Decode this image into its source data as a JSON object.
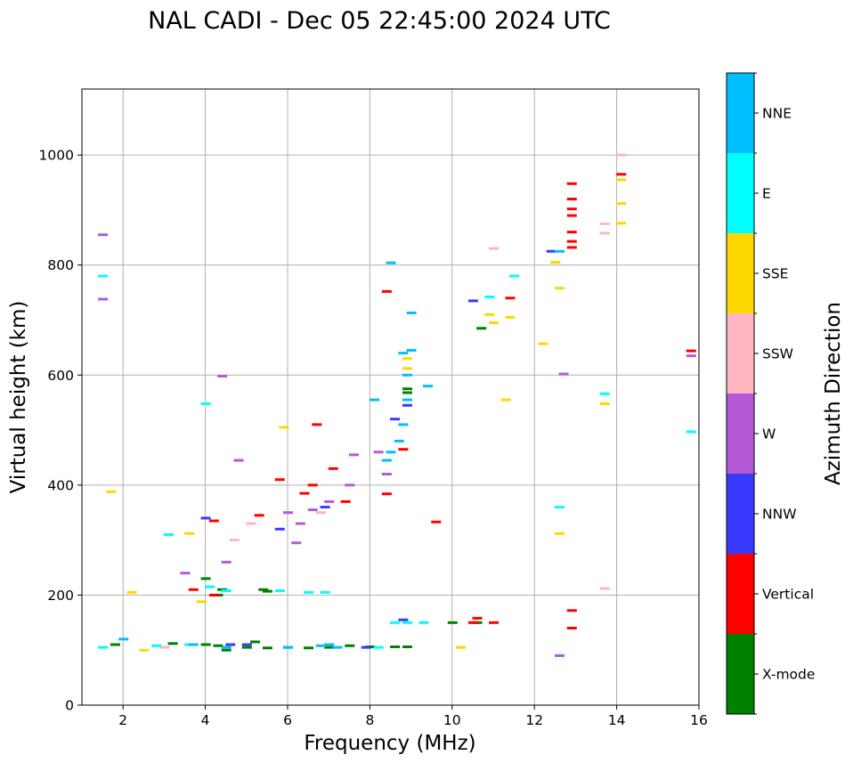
{
  "chart_data": {
    "type": "scatter",
    "title": "NAL CADI - Dec 05 22:45:00 2024 UTC",
    "xlabel": "Frequency (MHz)",
    "ylabel": "Virtual height (km)",
    "xlim": [
      1,
      16
    ],
    "ylim": [
      0,
      1120
    ],
    "xticks": [
      2,
      4,
      6,
      8,
      10,
      12,
      14,
      16
    ],
    "yticks": [
      0,
      200,
      400,
      600,
      800,
      1000
    ],
    "grid": true,
    "colorbar": {
      "label": "Azimuth Direction",
      "entries": [
        {
          "name": "X-mode",
          "color": "#008000"
        },
        {
          "name": "Vertical",
          "color": "#ff0000"
        },
        {
          "name": "NNW",
          "color": "#3a3aff"
        },
        {
          "name": "W",
          "color": "#b45ad6"
        },
        {
          "name": "SSW",
          "color": "#ffb6c1"
        },
        {
          "name": "SSE",
          "color": "#ffd700"
        },
        {
          "name": "E",
          "color": "#00ffff"
        },
        {
          "name": "NNE",
          "color": "#00bfff"
        }
      ]
    },
    "series": [
      {
        "name": "X-mode",
        "points": [
          [
            4.0,
            110
          ],
          [
            4.3,
            108
          ],
          [
            4.5,
            100
          ],
          [
            5.0,
            105
          ],
          [
            5.5,
            104
          ],
          [
            6.0,
            105
          ],
          [
            6.5,
            104
          ],
          [
            7.0,
            105
          ],
          [
            7.5,
            108
          ],
          [
            8.0,
            106
          ],
          [
            8.6,
            106
          ],
          [
            8.9,
            106
          ],
          [
            10.0,
            150
          ],
          [
            10.6,
            150
          ],
          [
            10.7,
            685
          ],
          [
            8.9,
            568
          ],
          [
            8.9,
            575
          ],
          [
            4.4,
            210
          ],
          [
            5.5,
            207
          ],
          [
            4.0,
            230
          ],
          [
            4.3,
            200
          ],
          [
            1.8,
            110
          ],
          [
            3.2,
            112
          ],
          [
            5.2,
            115
          ],
          [
            5.4,
            210
          ]
        ]
      },
      {
        "name": "Vertical",
        "points": [
          [
            10.5,
            150
          ],
          [
            11.0,
            150
          ],
          [
            10.6,
            158
          ],
          [
            12.9,
            172
          ],
          [
            12.9,
            140
          ],
          [
            8.4,
            752
          ],
          [
            8.4,
            384
          ],
          [
            9.6,
            333
          ],
          [
            12.9,
            948
          ],
          [
            12.9,
            920
          ],
          [
            12.9,
            902
          ],
          [
            12.9,
            890
          ],
          [
            12.9,
            860
          ],
          [
            12.9,
            843
          ],
          [
            12.9,
            832
          ],
          [
            14.1,
            965
          ],
          [
            15.8,
            644
          ],
          [
            11.4,
            740
          ],
          [
            5.3,
            345
          ],
          [
            6.4,
            385
          ],
          [
            6.6,
            400
          ],
          [
            7.1,
            430
          ],
          [
            5.8,
            410
          ],
          [
            4.2,
            200
          ],
          [
            3.7,
            210
          ],
          [
            4.2,
            335
          ],
          [
            6.7,
            510
          ],
          [
            7.4,
            370
          ],
          [
            8.8,
            465
          ]
        ]
      },
      {
        "name": "NNW",
        "points": [
          [
            12.4,
            825
          ],
          [
            10.5,
            735
          ],
          [
            4.6,
            110
          ],
          [
            5.0,
            110
          ],
          [
            7.9,
            105
          ],
          [
            8.6,
            520
          ],
          [
            8.9,
            545
          ],
          [
            4.0,
            340
          ],
          [
            5.8,
            320
          ],
          [
            6.9,
            360
          ],
          [
            8.8,
            155
          ]
        ]
      },
      {
        "name": "W",
        "points": [
          [
            1.5,
            855
          ],
          [
            1.5,
            738
          ],
          [
            4.4,
            598
          ],
          [
            12.7,
            602
          ],
          [
            12.6,
            90
          ],
          [
            15.8,
            635
          ],
          [
            6.3,
            330
          ],
          [
            7.0,
            370
          ],
          [
            7.5,
            400
          ],
          [
            8.4,
            420
          ],
          [
            4.5,
            260
          ],
          [
            6.2,
            295
          ],
          [
            4.8,
            445
          ],
          [
            6.0,
            350
          ],
          [
            6.6,
            355
          ],
          [
            7.6,
            455
          ],
          [
            8.2,
            460
          ],
          [
            3.5,
            240
          ]
        ]
      },
      {
        "name": "SSW",
        "points": [
          [
            14.1,
            1000
          ],
          [
            13.7,
            875
          ],
          [
            13.7,
            858
          ],
          [
            13.7,
            212
          ],
          [
            11.0,
            830
          ],
          [
            5.1,
            330
          ],
          [
            6.8,
            350
          ],
          [
            4.7,
            300
          ],
          [
            3.0,
            105
          ]
        ]
      },
      {
        "name": "SSE",
        "points": [
          [
            14.1,
            955
          ],
          [
            14.1,
            912
          ],
          [
            14.1,
            876
          ],
          [
            12.5,
            805
          ],
          [
            12.6,
            758
          ],
          [
            12.2,
            657
          ],
          [
            13.7,
            548
          ],
          [
            12.6,
            312
          ],
          [
            11.3,
            555
          ],
          [
            10.9,
            710
          ],
          [
            11.0,
            695
          ],
          [
            11.4,
            705
          ],
          [
            10.2,
            105
          ],
          [
            1.7,
            388
          ],
          [
            3.6,
            312
          ],
          [
            5.9,
            505
          ],
          [
            3.9,
            188
          ],
          [
            2.5,
            100
          ],
          [
            2.2,
            205
          ],
          [
            8.9,
            630
          ],
          [
            8.9,
            612
          ]
        ]
      },
      {
        "name": "E",
        "points": [
          [
            1.5,
            780
          ],
          [
            15.8,
            497
          ],
          [
            13.7,
            566
          ],
          [
            12.6,
            360
          ],
          [
            11.5,
            780
          ],
          [
            10.9,
            742
          ],
          [
            4.0,
            548
          ],
          [
            3.1,
            310
          ],
          [
            8.9,
            150
          ],
          [
            8.6,
            150
          ],
          [
            9.3,
            150
          ],
          [
            8.2,
            105
          ],
          [
            6.5,
            205
          ],
          [
            6.9,
            205
          ],
          [
            4.5,
            208
          ],
          [
            2.8,
            108
          ],
          [
            3.6,
            110
          ],
          [
            5.8,
            208
          ],
          [
            1.5,
            105
          ],
          [
            4.1,
            215
          ]
        ]
      },
      {
        "name": "NNE",
        "points": [
          [
            8.5,
            804
          ],
          [
            9.0,
            713
          ],
          [
            9.0,
            645
          ],
          [
            9.4,
            580
          ],
          [
            8.8,
            640
          ],
          [
            8.9,
            600
          ],
          [
            8.9,
            555
          ],
          [
            8.8,
            510
          ],
          [
            8.7,
            480
          ],
          [
            8.5,
            460
          ],
          [
            8.4,
            445
          ],
          [
            7.2,
            105
          ],
          [
            7.0,
            110
          ],
          [
            6.0,
            105
          ],
          [
            6.8,
            108
          ],
          [
            4.5,
            105
          ],
          [
            3.7,
            110
          ],
          [
            2.0,
            120
          ],
          [
            8.1,
            555
          ],
          [
            12.6,
            825
          ]
        ]
      }
    ]
  }
}
